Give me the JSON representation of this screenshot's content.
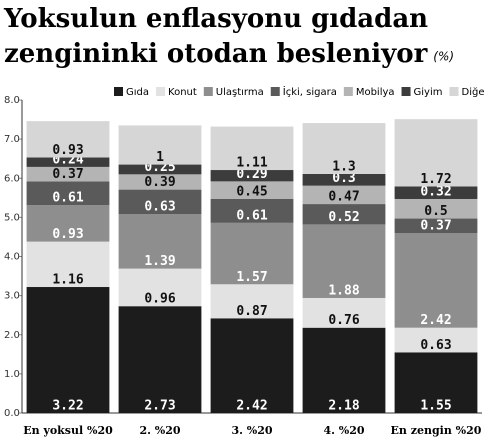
{
  "chart_data": {
    "type": "stacked_bar",
    "title": [
      "Yoksulun enflasyonu gıdadan",
      "zengininki otodan besleniyor"
    ],
    "unit": "(%)",
    "categories": [
      "En yoksul %20",
      "2. %20",
      "3. %20",
      "4. %20",
      "En zengin %20"
    ],
    "series": [
      {
        "name": "Gıda",
        "color": "#1c1c1c",
        "values": [
          3.22,
          2.73,
          2.42,
          2.18,
          1.55
        ]
      },
      {
        "name": "Konut",
        "color": "#e2e2e2",
        "values": [
          1.16,
          0.96,
          0.87,
          0.76,
          0.63
        ]
      },
      {
        "name": "Ulaştırma",
        "color": "#8e8e8e",
        "values": [
          0.93,
          1.39,
          1.57,
          1.88,
          2.42
        ]
      },
      {
        "name": "İçki, sigara",
        "color": "#5a5a5a",
        "values": [
          0.61,
          0.63,
          0.61,
          0.52,
          0.37
        ]
      },
      {
        "name": "Mobilya",
        "color": "#b4b4b4",
        "values": [
          0.37,
          0.39,
          0.45,
          0.47,
          0.5
        ]
      },
      {
        "name": "Giyim",
        "color": "#3c3c3c",
        "values": [
          0.24,
          0.25,
          0.29,
          0.3,
          0.32
        ]
      },
      {
        "name": "Diğer",
        "color": "#d6d6d6",
        "values": [
          0.93,
          1.0,
          1.11,
          1.3,
          1.72
        ]
      }
    ],
    "ylim": [
      0,
      8
    ],
    "yticks": [
      {
        "value": 0,
        "label": "0.0"
      },
      {
        "value": 1,
        "label": "1.0"
      },
      {
        "value": 2,
        "label": "2.0"
      },
      {
        "value": 3,
        "label": "3.0"
      },
      {
        "value": 4,
        "label": "4.0"
      },
      {
        "value": 5,
        "label": "5.0"
      },
      {
        "value": 6,
        "label": "6.0"
      },
      {
        "value": 7,
        "label": "7.0"
      },
      {
        "value": 8,
        "label": "8.0"
      }
    ],
    "grid": false
  }
}
